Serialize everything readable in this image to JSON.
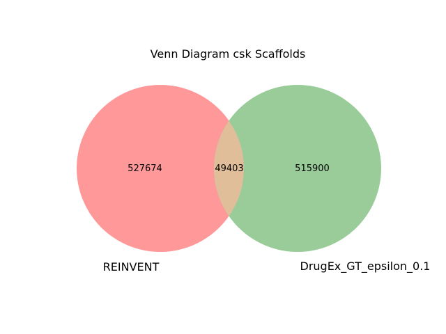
{
  "title": "Venn Diagram csk Scaffolds",
  "colors": {
    "set_a": "#ff9999",
    "set_b": "#99cc99",
    "intersection": "#e0be9a"
  },
  "venn": {
    "set_a": {
      "label": "REINVENT",
      "only_count": "527674"
    },
    "set_b": {
      "label": "DrugEx_GT_epsilon_0.1",
      "only_count": "515900"
    },
    "intersection": {
      "count": "49403"
    }
  }
}
